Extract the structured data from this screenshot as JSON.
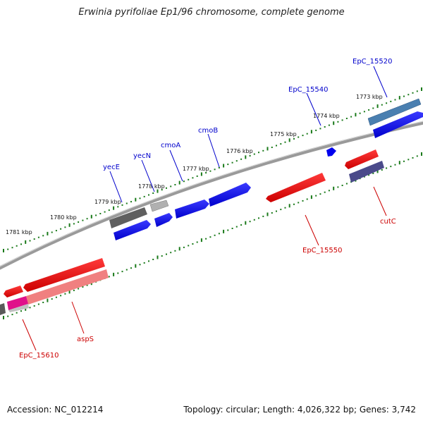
{
  "title": "Erwinia pyrifoliae Ep1/96 chromosome, complete genome",
  "footer": {
    "accession": "Accession: NC_012214",
    "summary": "Topology: circular; Length: 4,026,322 bp; Genes: 3,742"
  },
  "ruler": {
    "outer_labels": [
      "1773 kbp",
      "1774 kbp",
      "1775 kbp",
      "1776 kbp",
      "1777 kbp",
      "1778 kbp",
      "1779 kbp",
      "1780 kbp",
      "1781 kbp"
    ]
  },
  "colors": {
    "forward": "#0000ee",
    "reverse": "#ee0000",
    "backbone": "#888888",
    "ticks": "#1a7a1a",
    "label_forward": "#0000cc",
    "label_reverse": "#cc0000"
  },
  "genes": [
    {
      "label": "EpC_15520",
      "strand": "forward"
    },
    {
      "label": "EpC_15540",
      "strand": "forward"
    },
    {
      "label": "cmoB",
      "strand": "forward"
    },
    {
      "label": "cmoA",
      "strand": "forward"
    },
    {
      "label": "yecN",
      "strand": "forward"
    },
    {
      "label": "yecE",
      "strand": "forward"
    },
    {
      "label": "cutC",
      "strand": "reverse"
    },
    {
      "label": "EpC_15550",
      "strand": "reverse"
    },
    {
      "label": "aspS",
      "strand": "reverse"
    },
    {
      "label": "EpC_15610",
      "strand": "reverse"
    }
  ]
}
